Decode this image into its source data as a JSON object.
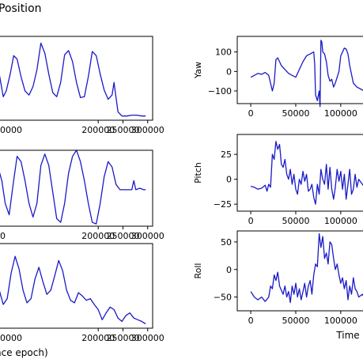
{
  "figure_title": "Position",
  "colors": {
    "line": "#1a1ac8",
    "axes": "#000000",
    "background": "#ffffff"
  },
  "chart_data": [
    {
      "type": "line",
      "panel": "left-1",
      "ylabel": "",
      "xlabel": "",
      "xlim": [
        -5000,
        310000
      ],
      "ylim": [
        0,
        1
      ],
      "xticks": [
        200000,
        250000,
        300000
      ],
      "xtick_labels": [
        "200000",
        "250000",
        "300000"
      ],
      "xtick_label_partial": "0000",
      "yticks": [],
      "ytick_labels": [],
      "series": [
        {
          "x": [
            -5000,
            0,
            8000,
            14000,
            22000,
            29000,
            36000,
            44000,
            52000,
            60000,
            68000,
            76000,
            84000,
            92000,
            100000,
            108000,
            116000,
            124000,
            132000,
            140000,
            148000,
            156000,
            164000,
            172000,
            180000,
            188000,
            196000,
            204000,
            212000,
            220000,
            228000,
            232000,
            236000,
            240000,
            248000,
            258000,
            268000,
            278000,
            288000,
            296000
          ],
          "y": [
            0.45,
            0.55,
            0.28,
            0.35,
            0.55,
            0.77,
            0.73,
            0.52,
            0.35,
            0.3,
            0.4,
            0.6,
            0.92,
            0.8,
            0.55,
            0.33,
            0.28,
            0.45,
            0.78,
            0.83,
            0.7,
            0.45,
            0.27,
            0.28,
            0.52,
            0.82,
            0.77,
            0.55,
            0.36,
            0.25,
            0.3,
            0.45,
            0.27,
            0.1,
            0.05,
            0.05,
            0.06,
            0.06,
            0.05,
            0.05
          ]
        }
      ]
    },
    {
      "type": "line",
      "panel": "left-2",
      "ylabel": "",
      "xlabel": "",
      "xlim": [
        -5000,
        310000
      ],
      "ylim": [
        0,
        1
      ],
      "xticks": [
        200000,
        250000,
        300000
      ],
      "xtick_labels": [
        "200000",
        "250000",
        "300000"
      ],
      "xtick_label_partial": "0",
      "yticks": [],
      "ytick_labels": [],
      "series": [
        {
          "x": [
            -5000,
            0,
            5000,
            12000,
            20000,
            28000,
            36000,
            44000,
            52000,
            60000,
            68000,
            76000,
            84000,
            92000,
            100000,
            108000,
            116000,
            124000,
            132000,
            140000,
            148000,
            156000,
            164000,
            172000,
            180000,
            188000,
            196000,
            204000,
            212000,
            220000,
            228000,
            236000,
            244000,
            252000,
            260000,
            268000,
            272000,
            276000,
            284000,
            292000,
            296000
          ],
          "y": [
            0.7,
            0.72,
            0.6,
            0.3,
            0.15,
            0.55,
            0.92,
            0.85,
            0.6,
            0.3,
            0.12,
            0.3,
            0.8,
            0.95,
            0.8,
            0.45,
            0.1,
            0.05,
            0.3,
            0.7,
            0.92,
            1.0,
            0.85,
            0.6,
            0.3,
            0.05,
            0.03,
            0.3,
            0.65,
            0.85,
            0.78,
            0.55,
            0.48,
            0.48,
            0.48,
            0.48,
            0.6,
            0.48,
            0.5,
            0.48,
            0.48
          ]
        }
      ]
    },
    {
      "type": "line",
      "panel": "left-3",
      "ylabel": "",
      "xlabel": "nce epoch)",
      "xlim": [
        -5000,
        310000
      ],
      "ylim": [
        0,
        1
      ],
      "xticks": [
        200000,
        250000,
        300000
      ],
      "xtick_labels": [
        "200000",
        "250000",
        "300000"
      ],
      "xtick_label_partial": "0000",
      "yticks": [],
      "ytick_labels": [],
      "series": [
        {
          "x": [
            -5000,
            0,
            8000,
            16000,
            24000,
            32000,
            40000,
            48000,
            56000,
            64000,
            72000,
            80000,
            88000,
            96000,
            104000,
            112000,
            120000,
            128000,
            136000,
            144000,
            152000,
            160000,
            168000,
            176000,
            184000,
            192000,
            200000,
            208000,
            216000,
            224000,
            232000,
            240000,
            248000,
            256000,
            264000,
            272000,
            280000,
            288000,
            296000
          ],
          "y": [
            0.55,
            0.45,
            0.28,
            0.35,
            0.65,
            0.85,
            0.7,
            0.45,
            0.3,
            0.35,
            0.58,
            0.72,
            0.55,
            0.4,
            0.45,
            0.62,
            0.8,
            0.68,
            0.45,
            0.33,
            0.3,
            0.42,
            0.38,
            0.33,
            0.35,
            0.28,
            0.22,
            0.1,
            0.18,
            0.25,
            0.22,
            0.12,
            0.08,
            0.15,
            0.18,
            0.12,
            0.1,
            0.08,
            0.05
          ]
        }
      ]
    },
    {
      "type": "line",
      "panel": "right-yaw",
      "ylabel": "Yaw",
      "xlabel": "",
      "xlim": [
        -15000,
        130000
      ],
      "ylim": [
        -165,
        180
      ],
      "xticks": [
        0,
        50000,
        100000
      ],
      "xtick_labels": [
        "0",
        "50000",
        "100000"
      ],
      "yticks": [
        100,
        0,
        -100
      ],
      "ytick_labels": [
        "100",
        "0",
        "−100"
      ],
      "series": [
        {
          "x": [
            0,
            4000,
            8000,
            12000,
            16000,
            20000,
            24000,
            26000,
            28000,
            30000,
            34000,
            38000,
            42000,
            46000,
            50000,
            54000,
            58000,
            62000,
            66000,
            70000,
            71000,
            72000,
            74000,
            76000,
            77000,
            78000,
            79000,
            80000,
            82000,
            84000,
            86000,
            88000,
            90000,
            92000,
            94000,
            96000,
            98000,
            100000,
            102000,
            104000,
            106000,
            108000,
            110000,
            114000,
            118000,
            122000,
            126000,
            130000
          ],
          "y": [
            -30,
            -20,
            -10,
            -15,
            -5,
            -20,
            -100,
            -60,
            60,
            70,
            30,
            10,
            -10,
            -20,
            -30,
            10,
            50,
            80,
            90,
            100,
            40,
            -120,
            -150,
            -100,
            -180,
            160,
            150,
            100,
            90,
            50,
            -20,
            -50,
            -40,
            -80,
            -60,
            -30,
            0,
            80,
            100,
            120,
            115,
            90,
            30,
            -60,
            -80,
            -90,
            -100,
            -90
          ]
        }
      ]
    },
    {
      "type": "line",
      "panel": "right-pitch",
      "ylabel": "Pitch",
      "xlabel": "",
      "xlim": [
        -15000,
        130000
      ],
      "ylim": [
        -32,
        45
      ],
      "xticks": [
        0,
        50000,
        100000
      ],
      "xtick_labels": [
        "0",
        "50000",
        "100000"
      ],
      "yticks": [
        25,
        0,
        -25
      ],
      "ytick_labels": [
        "25",
        "0",
        "−25"
      ],
      "series": [
        {
          "x": [
            0,
            4000,
            8000,
            12000,
            16000,
            18000,
            20000,
            22000,
            24000,
            26000,
            28000,
            30000,
            32000,
            34000,
            36000,
            38000,
            40000,
            42000,
            44000,
            46000,
            48000,
            50000,
            52000,
            54000,
            56000,
            58000,
            60000,
            62000,
            64000,
            66000,
            68000,
            70000,
            72000,
            74000,
            76000,
            78000,
            80000,
            82000,
            84000,
            86000,
            88000,
            90000,
            92000,
            94000,
            96000,
            98000,
            100000,
            102000,
            104000,
            106000,
            108000,
            110000,
            112000,
            114000,
            116000,
            118000,
            120000,
            124000,
            128000,
            130000
          ],
          "y": [
            -7,
            -8,
            -10,
            -9,
            -6,
            -12,
            -5,
            -8,
            25,
            20,
            38,
            30,
            35,
            15,
            12,
            20,
            5,
            0,
            10,
            -5,
            5,
            -10,
            -15,
            0,
            -5,
            8,
            -2,
            5,
            -12,
            -10,
            -5,
            -18,
            -25,
            -5,
            -15,
            10,
            0,
            -5,
            15,
            -10,
            12,
            -10,
            -20,
            -8,
            10,
            -2,
            8,
            -10,
            5,
            -20,
            -5,
            10,
            -15,
            -10,
            5,
            -8,
            0,
            -5,
            -10,
            -8
          ]
        }
      ]
    },
    {
      "type": "line",
      "panel": "right-roll",
      "ylabel": "Roll",
      "xlabel": "Time",
      "xlim": [
        -15000,
        130000
      ],
      "ylim": [
        -75,
        70
      ],
      "xticks": [
        0,
        50000,
        100000
      ],
      "xtick_labels": [
        "0",
        "50000",
        "100000"
      ],
      "yticks": [
        50,
        0,
        -50
      ],
      "ytick_labels": [
        "50",
        "0",
        "−50"
      ],
      "series": [
        {
          "x": [
            0,
            4000,
            8000,
            12000,
            16000,
            20000,
            22000,
            24000,
            26000,
            28000,
            30000,
            32000,
            36000,
            38000,
            40000,
            42000,
            44000,
            46000,
            48000,
            50000,
            52000,
            54000,
            56000,
            58000,
            60000,
            62000,
            64000,
            66000,
            68000,
            70000,
            72000,
            74000,
            76000,
            78000,
            80000,
            82000,
            84000,
            86000,
            88000,
            90000,
            92000,
            94000,
            96000,
            98000,
            100000,
            102000,
            104000,
            106000,
            108000,
            110000,
            112000,
            114000,
            116000,
            118000,
            120000,
            124000,
            128000,
            130000
          ],
          "y": [
            -40,
            -50,
            -55,
            -50,
            -58,
            -50,
            -30,
            -35,
            -10,
            -20,
            -5,
            -30,
            -45,
            -30,
            -50,
            -40,
            -60,
            -30,
            -45,
            -25,
            -50,
            -35,
            -55,
            -40,
            -25,
            -50,
            -30,
            -20,
            -45,
            -10,
            10,
            5,
            65,
            40,
            60,
            20,
            30,
            10,
            50,
            45,
            20,
            0,
            10,
            -10,
            -25,
            -15,
            -35,
            -20,
            -55,
            -30,
            -45,
            -15,
            -35,
            -40,
            -50,
            -45,
            -55,
            -60
          ]
        }
      ]
    }
  ]
}
